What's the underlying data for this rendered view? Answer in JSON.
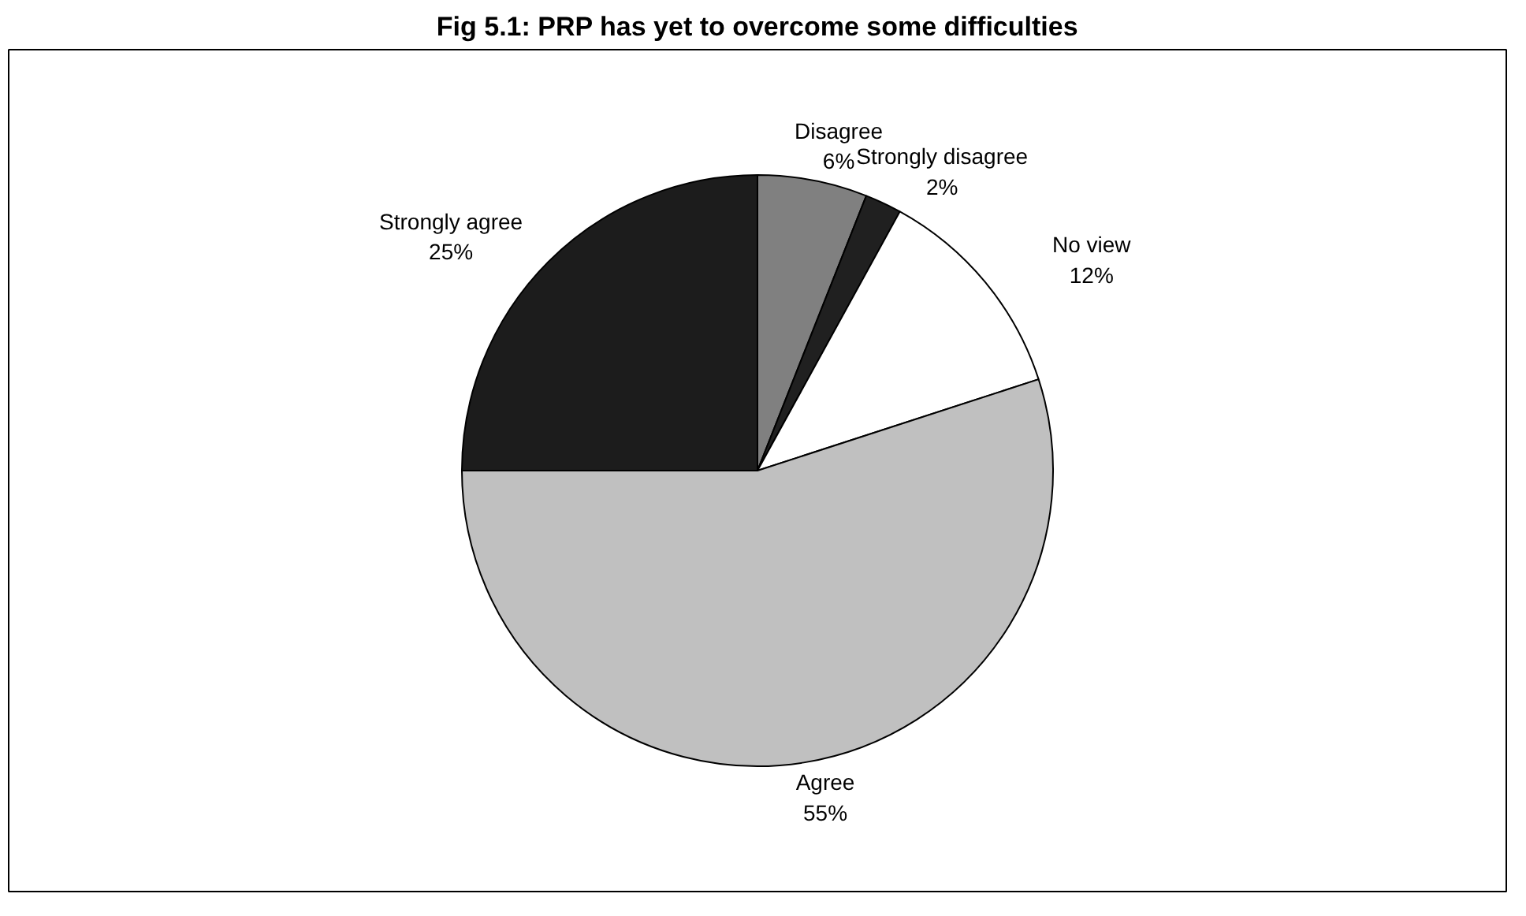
{
  "chart_data": {
    "type": "pie",
    "title": "Fig 5.1: PRP has yet to overcome some difficulties",
    "categories": [
      "Disagree",
      "Strongly disagree",
      "No view",
      "Agree",
      "Strongly agree"
    ],
    "values": [
      6,
      2,
      12,
      55,
      25
    ],
    "value_labels": [
      "6%",
      "2%",
      "12%",
      "55%",
      "25%"
    ],
    "colors": [
      "#808080",
      "#202020",
      "#ffffff",
      "#c0c0c0",
      "#1c1c1c"
    ]
  }
}
